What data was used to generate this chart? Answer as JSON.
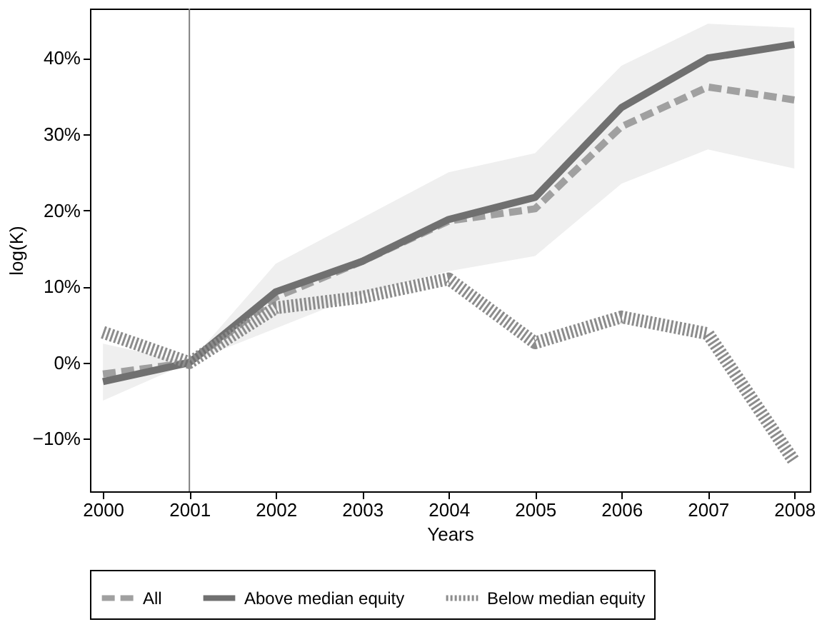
{
  "chart_data": {
    "type": "line",
    "xlabel": "Years",
    "ylabel": "log(K)",
    "x": [
      2000,
      2001,
      2002,
      2003,
      2004,
      2005,
      2006,
      2007,
      2008
    ],
    "series": [
      {
        "name": "All",
        "color": "#a0a0a0",
        "line_style": "dashed",
        "values": [
          -1.5,
          0,
          8.6,
          13.3,
          18.6,
          20.2,
          31,
          36.2,
          34.5
        ],
        "lower": [
          -5,
          0,
          4.5,
          9,
          12,
          14,
          23.5,
          28,
          25.5
        ],
        "upper": [
          2.5,
          0,
          13,
          19,
          25,
          27.5,
          39,
          44.5,
          44
        ]
      },
      {
        "name": "Above median equity",
        "color": "#707070",
        "line_style": "solid",
        "values": [
          -2.5,
          0,
          9.3,
          13.3,
          18.8,
          21.7,
          33.5,
          40,
          41.8
        ]
      },
      {
        "name": "Below median equity",
        "color": "#8c8c8c",
        "line_style": "dotted",
        "values": [
          4,
          0,
          7.2,
          8.6,
          11,
          2.6,
          6,
          3.8,
          -13
        ]
      }
    ],
    "xlim": [
      1999.85,
      2008.18
    ],
    "xticks": [
      2000,
      2001,
      2002,
      2003,
      2004,
      2005,
      2006,
      2007,
      2008
    ],
    "ylim": [
      -16.9,
      46.5
    ],
    "yticks": [
      {
        "value": -10,
        "label": "−10%"
      },
      {
        "value": 0,
        "label": "0%"
      },
      {
        "value": 10,
        "label": "10%"
      },
      {
        "value": 20,
        "label": "20%"
      },
      {
        "value": 30,
        "label": "30%"
      },
      {
        "value": 40,
        "label": "40%"
      }
    ],
    "ref_lines": [
      {
        "axis": "x",
        "value": 2001,
        "color": "#808080"
      }
    ],
    "legend": "bottom",
    "grid": false
  }
}
